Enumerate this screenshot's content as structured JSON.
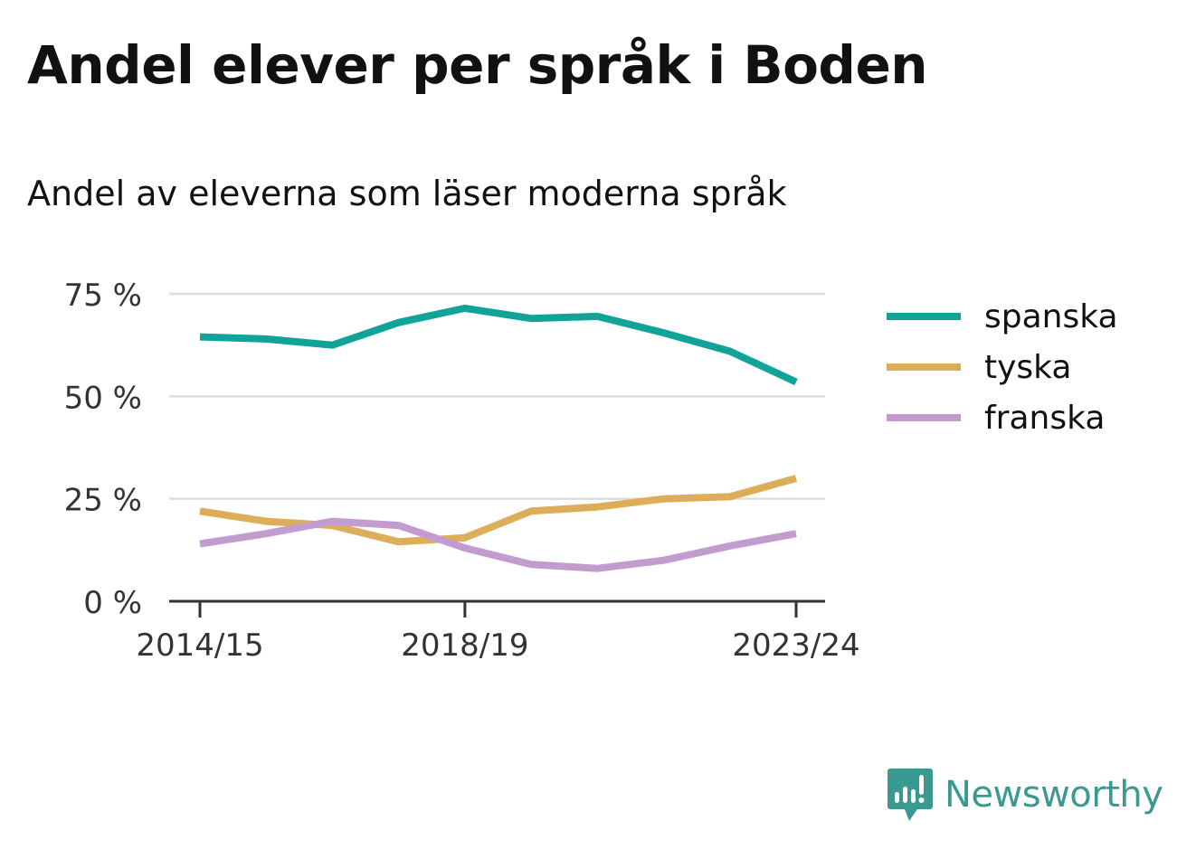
{
  "header": {
    "title": "Andel elever per språk i Boden",
    "subtitle": "Andel av eleverna som läser moderna språk"
  },
  "brand": {
    "name": "Newsworthy",
    "icon": "newsworthy-logo-icon",
    "color": "#3a9a92"
  },
  "chart_data": {
    "type": "line",
    "x": [
      "2014/15",
      "2015/16",
      "2016/17",
      "2017/18",
      "2018/19",
      "2019/20",
      "2020/21",
      "2021/22",
      "2022/23",
      "2023/24"
    ],
    "x_ticks": [
      "2014/15",
      "2018/19",
      "2023/24"
    ],
    "y_ticks": [
      "0 %",
      "25 %",
      "50 %",
      "75 %"
    ],
    "ylim": [
      0,
      75
    ],
    "grid": true,
    "legend_position": "right",
    "series": [
      {
        "name": "spanska",
        "color": "#10a398",
        "values": [
          64.5,
          64.0,
          62.5,
          68.0,
          71.5,
          69.0,
          69.5,
          65.5,
          61.0,
          53.5
        ]
      },
      {
        "name": "tyska",
        "color": "#ddae5a",
        "values": [
          22.0,
          19.5,
          18.5,
          14.5,
          15.5,
          22.0,
          23.0,
          25.0,
          25.5,
          30.0
        ]
      },
      {
        "name": "franska",
        "color": "#c39ccf",
        "values": [
          14.0,
          16.5,
          19.5,
          18.5,
          13.0,
          9.0,
          8.0,
          10.0,
          13.5,
          16.5
        ]
      }
    ]
  }
}
